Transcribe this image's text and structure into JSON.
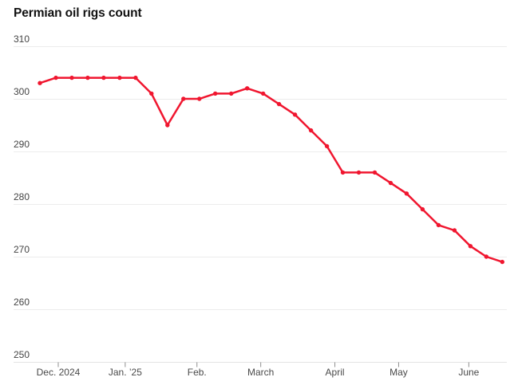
{
  "title": "Permian oil rigs count",
  "colors": {
    "line": "#f0162f",
    "marker": "#f0162f",
    "gridline": "#ececec",
    "baseline": "#e4e4e4",
    "tick": "#8f8f8f",
    "y_label_text": "#444444",
    "x_label_text": "#4a4a4a",
    "title_text": "#111111",
    "background": "#ffffff"
  },
  "chart_data": {
    "type": "line",
    "title": "Permian oil rigs count",
    "frequency": "weekly",
    "series": [
      {
        "name": "Permian oil rigs count",
        "values": [
          303,
          304,
          304,
          304,
          304,
          304,
          304,
          301,
          295,
          300,
          300,
          301,
          301,
          302,
          301,
          299,
          297,
          294,
          291,
          286,
          286,
          286,
          284,
          282,
          279,
          276,
          275,
          272,
          270,
          269
        ]
      }
    ],
    "x_tick_labels": [
      "Dec. 2024",
      "Jan. ’25",
      "Feb.",
      "March",
      "April",
      "May",
      "June"
    ],
    "x_tick_week_positions": [
      1.15,
      5.35,
      9.85,
      13.85,
      18.5,
      22.5,
      26.9
    ],
    "y_ticks": [
      310,
      300,
      290,
      280,
      270,
      260,
      250
    ],
    "ylim": [
      250,
      310
    ],
    "grid": "horizontal",
    "legend": "none",
    "marker_shape": "circle"
  }
}
